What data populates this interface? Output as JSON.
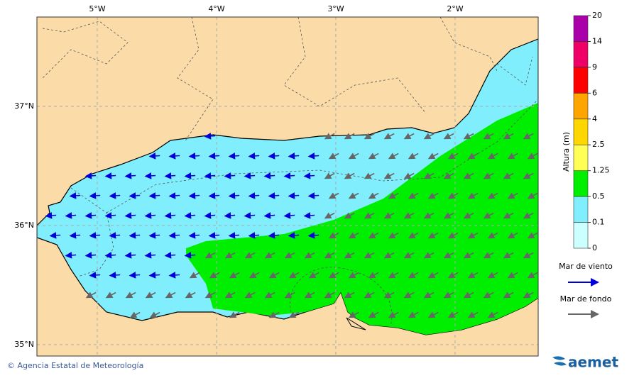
{
  "map": {
    "lon_ticks": [
      "5°W",
      "4°W",
      "3°W",
      "2°W"
    ],
    "lat_ticks": [
      "37°N",
      "36°N",
      "35°N"
    ]
  },
  "colorbar": {
    "title": "Altura (m)",
    "ticks": [
      0,
      0.1,
      0.5,
      1.25,
      2.5,
      4,
      6,
      9,
      14,
      20
    ],
    "colors": [
      "#ccffff",
      "#80eefc",
      "#00ee00",
      "#ffff55",
      "#ffd700",
      "#ffa500",
      "#ff0000",
      "#ee0066",
      "#aa00aa"
    ]
  },
  "legend": [
    {
      "label": "Mar de viento",
      "color": "#0000dd"
    },
    {
      "label": "Mar de fondo",
      "color": "#666666"
    }
  ],
  "footer": {
    "credit": "© Agencia Estatal de Meteorología",
    "logo": "aemet"
  }
}
